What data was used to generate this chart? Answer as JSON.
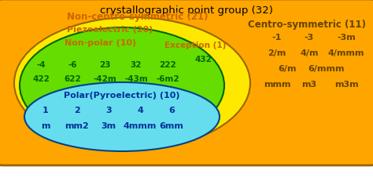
{
  "title": "crystallographic point group (32)",
  "title_fontsize": 9.5,
  "bg_color": "#ffffff",
  "outer_box_facecolor": "#FFA500",
  "outer_box_edgecolor": "#996600",
  "noncentro_label": "Non-centro-symmetric (21)",
  "yellow_ellipse_color": "#FFE800",
  "yellow_ellipse_edge": "#996600",
  "green_ellipse_color": "#66DD00",
  "green_ellipse_edge": "#006600",
  "cyan_ellipse_color": "#66DDEE",
  "cyan_ellipse_edge": "#004488",
  "piezo_label": "Piezoelectric (20)",
  "nonpolar_label": "Non-polar (10)",
  "polar_label": "Polar(Pyroelectric) (10)",
  "exception_label": "Exception (1)",
  "exception_value": "432",
  "centro_label": "Centro-symmetric (11)",
  "nonpolar_row1": [
    "-4",
    "-6",
    "23",
    "32",
    "222"
  ],
  "nonpolar_row2": [
    "422",
    "622",
    "-42m",
    "-43m",
    "-6m2"
  ],
  "polar_row1": [
    "1",
    "2",
    "3",
    "4",
    "6"
  ],
  "polar_row2": [
    "m",
    "mm2",
    "3m",
    "4mmm",
    "6mm"
  ],
  "centro_row1": [
    "-1",
    "-3",
    "-3m"
  ],
  "centro_row2": [
    "2/m",
    "4/m",
    "4/mmm"
  ],
  "centro_row3": [
    "6/m",
    "6/mmm"
  ],
  "centro_row4": [
    "mmm",
    "m3",
    "m3m"
  ],
  "label_color_orange": "#CC6600",
  "label_color_green": "#006600",
  "label_color_blue": "#003399",
  "label_color_centro": "#664400",
  "text_fontsize": 7.5,
  "label_fontsize": 8.0,
  "header_fontsize": 8.5
}
